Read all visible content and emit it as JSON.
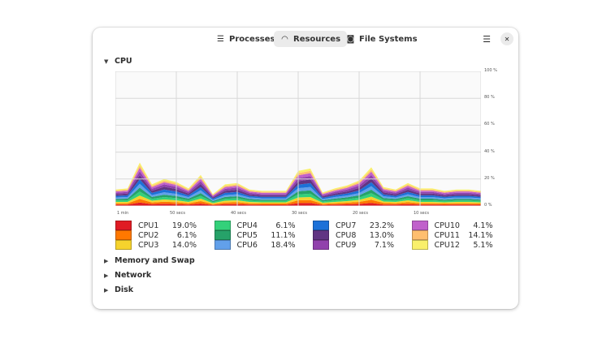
{
  "header": {
    "tabs": [
      {
        "label": "Processes",
        "icon": "list-icon",
        "active": false
      },
      {
        "label": "Resources",
        "icon": "gauge-icon",
        "active": true
      },
      {
        "label": "File Systems",
        "icon": "disk-icon",
        "active": false
      }
    ],
    "menu_icon": "hamburger-menu-icon",
    "close_icon": "close-icon"
  },
  "sections": {
    "cpu": "CPU",
    "memory": "Memory and Swap",
    "network": "Network",
    "disk": "Disk"
  },
  "chart_data": {
    "type": "area",
    "stacked": true,
    "x": [
      60,
      58,
      56,
      54,
      52,
      50,
      48,
      46,
      44,
      42,
      40,
      38,
      36,
      34,
      32,
      30,
      28,
      26,
      24,
      22,
      20,
      18,
      16,
      14,
      12,
      10,
      8,
      6,
      4,
      2,
      0
    ],
    "x_tick_labels": [
      "1 min",
      "50 secs",
      "40 secs",
      "30 secs",
      "20 secs",
      "10 secs"
    ],
    "y_tick_labels": [
      "100 %",
      "80 %",
      "60 %",
      "40 %",
      "20 %",
      "0 %"
    ],
    "ylim": [
      0,
      100
    ],
    "grid": true,
    "series": [
      {
        "name": "CPU1",
        "color": "#e01b24",
        "value_label": "19.0%",
        "values": [
          1.0,
          1.0,
          2.6,
          1.3,
          1.6,
          1.4,
          1.0,
          1.8,
          0.7,
          1.3,
          1.4,
          1.0,
          0.9,
          0.9,
          0.9,
          2.1,
          2.2,
          0.8,
          1.0,
          1.2,
          1.5,
          2.3,
          1.1,
          1.0,
          1.4,
          1.0,
          1.0,
          0.9,
          1.0,
          1.0,
          0.9
        ]
      },
      {
        "name": "CPU2",
        "color": "#ff7800",
        "value_label": "6.1%",
        "values": [
          1.0,
          1.0,
          2.6,
          1.3,
          1.6,
          1.4,
          1.0,
          1.8,
          0.7,
          1.3,
          1.4,
          1.0,
          0.9,
          0.9,
          0.9,
          2.1,
          2.2,
          0.8,
          1.0,
          1.2,
          1.5,
          2.3,
          1.1,
          1.0,
          1.4,
          1.0,
          1.0,
          0.9,
          1.0,
          1.0,
          0.9
        ]
      },
      {
        "name": "CPU3",
        "color": "#f6d32d",
        "value_label": "14.0%",
        "values": [
          1.0,
          1.0,
          2.6,
          1.3,
          1.6,
          1.4,
          1.0,
          1.8,
          0.7,
          1.3,
          1.4,
          1.0,
          0.9,
          0.9,
          0.9,
          2.1,
          2.2,
          0.8,
          1.0,
          1.2,
          1.5,
          2.3,
          1.1,
          1.0,
          1.4,
          1.0,
          1.0,
          0.9,
          1.0,
          1.0,
          0.9
        ]
      },
      {
        "name": "CPU4",
        "color": "#33d17a",
        "value_label": "6.1%",
        "values": [
          1.1,
          1.2,
          2.9,
          1.4,
          1.8,
          1.6,
          1.2,
          2.1,
          0.8,
          1.4,
          1.5,
          1.1,
          1.0,
          1.0,
          1.0,
          2.3,
          2.5,
          0.9,
          1.2,
          1.4,
          1.7,
          2.6,
          1.3,
          1.1,
          1.5,
          1.2,
          1.2,
          1.0,
          1.1,
          1.1,
          1.0
        ]
      },
      {
        "name": "CPU5",
        "color": "#26a269",
        "value_label": "11.1%",
        "values": [
          1.1,
          1.2,
          2.9,
          1.4,
          1.8,
          1.6,
          1.2,
          2.1,
          0.8,
          1.4,
          1.5,
          1.1,
          1.0,
          1.0,
          1.0,
          2.3,
          2.5,
          0.9,
          1.2,
          1.4,
          1.7,
          2.6,
          1.3,
          1.1,
          1.5,
          1.2,
          1.2,
          1.0,
          1.1,
          1.1,
          1.0
        ]
      },
      {
        "name": "CPU6",
        "color": "#62a0ea",
        "value_label": "18.4%",
        "values": [
          1.1,
          1.2,
          2.9,
          1.4,
          1.8,
          1.6,
          1.2,
          2.1,
          0.8,
          1.4,
          1.5,
          1.1,
          1.0,
          1.0,
          1.0,
          2.3,
          2.5,
          0.9,
          1.2,
          1.4,
          1.7,
          2.6,
          1.3,
          1.1,
          1.5,
          1.2,
          1.2,
          1.0,
          1.1,
          1.1,
          1.0
        ]
      },
      {
        "name": "CPU7",
        "color": "#1c71d8",
        "value_label": "23.2%",
        "values": [
          1.2,
          1.3,
          3.2,
          1.6,
          2.0,
          1.8,
          1.3,
          2.3,
          0.9,
          1.6,
          1.7,
          1.2,
          1.1,
          1.1,
          1.1,
          2.6,
          2.8,
          1.0,
          1.3,
          1.5,
          1.9,
          2.9,
          1.4,
          1.2,
          1.7,
          1.3,
          1.3,
          1.1,
          1.2,
          1.2,
          1.1
        ]
      },
      {
        "name": "CPU8",
        "color": "#613583",
        "value_label": "13.0%",
        "values": [
          1.2,
          1.3,
          3.2,
          1.6,
          2.0,
          1.8,
          1.3,
          2.3,
          0.9,
          1.6,
          1.7,
          1.2,
          1.1,
          1.1,
          1.1,
          2.6,
          2.8,
          1.0,
          1.3,
          1.5,
          1.9,
          2.9,
          1.4,
          1.2,
          1.7,
          1.3,
          1.3,
          1.1,
          1.2,
          1.2,
          1.1
        ]
      },
      {
        "name": "CPU9",
        "color": "#9141ac",
        "value_label": "7.1%",
        "values": [
          1.1,
          1.2,
          2.9,
          1.4,
          1.8,
          1.6,
          1.2,
          2.1,
          0.8,
          1.4,
          1.5,
          1.1,
          1.0,
          1.0,
          1.0,
          2.3,
          2.5,
          0.9,
          1.2,
          1.4,
          1.7,
          2.6,
          1.3,
          1.1,
          1.5,
          1.2,
          1.2,
          1.0,
          1.1,
          1.1,
          1.0
        ]
      },
      {
        "name": "CPU10",
        "color": "#c061cb",
        "value_label": "4.1%",
        "values": [
          1.0,
          1.0,
          2.6,
          1.3,
          1.6,
          1.4,
          1.0,
          1.8,
          0.7,
          1.3,
          1.4,
          1.0,
          0.9,
          0.9,
          0.9,
          2.1,
          2.2,
          0.8,
          1.0,
          1.2,
          1.5,
          2.3,
          1.1,
          1.0,
          1.4,
          1.0,
          1.0,
          0.9,
          1.0,
          1.0,
          0.9
        ]
      },
      {
        "name": "CPU11",
        "color": "#ffbe6f",
        "value_label": "14.1%",
        "values": [
          0.7,
          0.8,
          1.9,
          1.0,
          1.2,
          1.1,
          0.8,
          1.4,
          0.5,
          1.0,
          1.0,
          0.7,
          0.7,
          0.7,
          0.7,
          1.6,
          1.7,
          0.6,
          0.8,
          0.9,
          1.1,
          1.7,
          0.8,
          0.7,
          1.0,
          0.8,
          0.8,
          0.7,
          0.7,
          0.7,
          0.7
        ]
      },
      {
        "name": "CPU12",
        "color": "#f9f06b",
        "value_label": "5.1%",
        "values": [
          0.7,
          0.8,
          1.9,
          1.0,
          1.2,
          1.1,
          0.8,
          1.4,
          0.5,
          1.0,
          1.0,
          0.7,
          0.7,
          0.7,
          0.7,
          1.6,
          1.7,
          0.6,
          0.8,
          0.9,
          1.1,
          1.7,
          0.8,
          0.7,
          1.0,
          0.8,
          0.8,
          0.7,
          0.7,
          0.7,
          0.7
        ]
      }
    ]
  }
}
